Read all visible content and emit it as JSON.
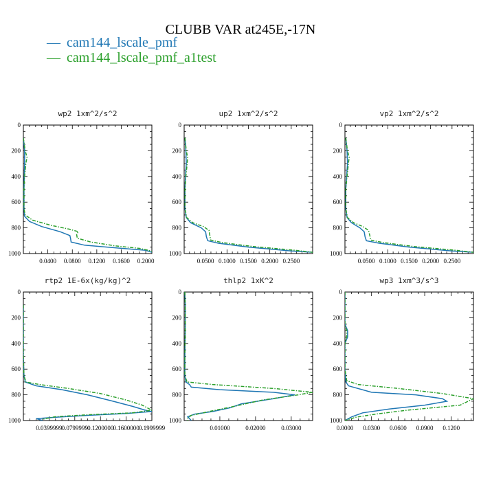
{
  "figure": {
    "title": "CLUBB VAR at245E,-17N",
    "legend": [
      {
        "marker": "—",
        "label": "cam144_lscale_pmf",
        "color": "#1f77b4"
      },
      {
        "marker": "—",
        "label": "cam144_lscale_pmf_a1test",
        "color": "#2ca02c"
      }
    ]
  },
  "chart_data": [
    {
      "type": "line",
      "title": "wp2  1xm^2/s^2",
      "xlim": [
        0.0,
        0.21
      ],
      "ylim": [
        1000,
        0
      ],
      "xticks": [
        0.04,
        0.08,
        0.12,
        0.16,
        0.2
      ],
      "xtick_labels": [
        "0.0400",
        "0.0800",
        "0.1200",
        "0.1600",
        "0.2000"
      ],
      "yticks": [
        0,
        200,
        400,
        600,
        800,
        1000
      ],
      "series": [
        {
          "name": "cam144_lscale_pmf",
          "points": [
            [
              0.0,
              100
            ],
            [
              0.002,
              200
            ],
            [
              0.002,
              300
            ],
            [
              0.001,
              500
            ],
            [
              0.001,
              650
            ],
            [
              0.002,
              710
            ],
            [
              0.01,
              750
            ],
            [
              0.03,
              790
            ],
            [
              0.06,
              830
            ],
            [
              0.076,
              860
            ],
            [
              0.077,
              880
            ],
            [
              0.078,
              910
            ],
            [
              0.1,
              935
            ],
            [
              0.15,
              955
            ],
            [
              0.2,
              975
            ],
            [
              0.21,
              990
            ]
          ]
        },
        {
          "name": "cam144_lscale_pmf_a1test",
          "points": [
            [
              0.0,
              100
            ],
            [
              0.003,
              200
            ],
            [
              0.006,
              250
            ],
            [
              0.004,
              300
            ],
            [
              0.002,
              400
            ],
            [
              0.001,
              500
            ],
            [
              0.001,
              650
            ],
            [
              0.003,
              700
            ],
            [
              0.015,
              740
            ],
            [
              0.045,
              780
            ],
            [
              0.075,
              810
            ],
            [
              0.09,
              830
            ],
            [
              0.087,
              850
            ],
            [
              0.088,
              880
            ],
            [
              0.11,
              910
            ],
            [
              0.15,
              940
            ],
            [
              0.19,
              960
            ],
            [
              0.205,
              975
            ],
            [
              0.21,
              985
            ]
          ]
        }
      ]
    },
    {
      "type": "line",
      "title": "up2  1xm^2/s^2",
      "xlim": [
        0.0,
        0.3
      ],
      "ylim": [
        1000,
        0
      ],
      "xticks": [
        0.05,
        0.1,
        0.15,
        0.2,
        0.25
      ],
      "xtick_labels": [
        "0.0500",
        "0.1000",
        "0.1500",
        "0.2000",
        "0.2500"
      ],
      "yticks": [
        0,
        200,
        400,
        600,
        800,
        1000
      ],
      "series": [
        {
          "name": "cam144_lscale_pmf",
          "points": [
            [
              0.002,
              100
            ],
            [
              0.004,
              200
            ],
            [
              0.005,
              300
            ],
            [
              0.003,
              400
            ],
            [
              0.002,
              500
            ],
            [
              0.002,
              650
            ],
            [
              0.005,
              720
            ],
            [
              0.015,
              760
            ],
            [
              0.04,
              800
            ],
            [
              0.05,
              830
            ],
            [
              0.052,
              870
            ],
            [
              0.055,
              900
            ],
            [
              0.08,
              920
            ],
            [
              0.15,
              950
            ],
            [
              0.25,
              980
            ],
            [
              0.3,
              990
            ]
          ]
        },
        {
          "name": "cam144_lscale_pmf_a1test",
          "points": [
            [
              0.002,
              100
            ],
            [
              0.005,
              200
            ],
            [
              0.008,
              250
            ],
            [
              0.007,
              300
            ],
            [
              0.004,
              400
            ],
            [
              0.002,
              500
            ],
            [
              0.002,
              650
            ],
            [
              0.006,
              720
            ],
            [
              0.02,
              760
            ],
            [
              0.045,
              790
            ],
            [
              0.058,
              820
            ],
            [
              0.06,
              860
            ],
            [
              0.062,
              895
            ],
            [
              0.09,
              915
            ],
            [
              0.16,
              945
            ],
            [
              0.26,
              975
            ],
            [
              0.3,
              990
            ]
          ]
        }
      ]
    },
    {
      "type": "line",
      "title": "vp2  1xm^2/s^2",
      "xlim": [
        0.0,
        0.3
      ],
      "ylim": [
        1000,
        0
      ],
      "xticks": [
        0.05,
        0.1,
        0.15,
        0.2,
        0.25
      ],
      "xtick_labels": [
        "0.0500",
        "0.1000",
        "0.1500",
        "0.2000",
        "0.2500"
      ],
      "yticks": [
        0,
        200,
        400,
        600,
        800,
        1000
      ],
      "series": [
        {
          "name": "cam144_lscale_pmf",
          "points": [
            [
              0.002,
              100
            ],
            [
              0.005,
              200
            ],
            [
              0.006,
              300
            ],
            [
              0.004,
              400
            ],
            [
              0.002,
              500
            ],
            [
              0.002,
              650
            ],
            [
              0.005,
              720
            ],
            [
              0.015,
              760
            ],
            [
              0.035,
              800
            ],
            [
              0.045,
              830
            ],
            [
              0.047,
              870
            ],
            [
              0.05,
              900
            ],
            [
              0.08,
              920
            ],
            [
              0.15,
              950
            ],
            [
              0.25,
              980
            ],
            [
              0.3,
              990
            ]
          ]
        },
        {
          "name": "cam144_lscale_pmf_a1test",
          "points": [
            [
              0.002,
              100
            ],
            [
              0.006,
              200
            ],
            [
              0.01,
              250
            ],
            [
              0.008,
              300
            ],
            [
              0.005,
              400
            ],
            [
              0.002,
              500
            ],
            [
              0.002,
              650
            ],
            [
              0.006,
              720
            ],
            [
              0.02,
              760
            ],
            [
              0.042,
              790
            ],
            [
              0.055,
              820
            ],
            [
              0.058,
              860
            ],
            [
              0.06,
              895
            ],
            [
              0.09,
              915
            ],
            [
              0.16,
              945
            ],
            [
              0.26,
              975
            ],
            [
              0.3,
              990
            ]
          ]
        }
      ]
    },
    {
      "type": "line",
      "title": "rtp2  1E-6x(kg/kg)^2",
      "xlim": [
        0.0,
        0.2
      ],
      "ylim": [
        1000,
        0
      ],
      "xticks": [
        0.04,
        0.08,
        0.12,
        0.16,
        0.2
      ],
      "xtick_labels": [
        "0.0399999",
        "0.0799999",
        "0.1200000",
        "0.1600000",
        "0.1999999"
      ],
      "yticks": [
        0,
        200,
        400,
        600,
        800,
        1000
      ],
      "series": [
        {
          "name": "cam144_lscale_pmf",
          "points": [
            [
              0.0,
              100
            ],
            [
              0.0,
              500
            ],
            [
              0.001,
              650
            ],
            [
              0.003,
              700
            ],
            [
              0.02,
              730
            ],
            [
              0.06,
              760
            ],
            [
              0.1,
              800
            ],
            [
              0.14,
              850
            ],
            [
              0.17,
              890
            ],
            [
              0.19,
              920
            ],
            [
              0.2,
              930
            ],
            [
              0.16,
              945
            ],
            [
              0.1,
              960
            ],
            [
              0.05,
              975
            ],
            [
              0.02,
              985
            ],
            [
              0.03,
              1000
            ]
          ]
        },
        {
          "name": "cam144_lscale_pmf_a1test",
          "points": [
            [
              0.0,
              100
            ],
            [
              0.0,
              500
            ],
            [
              0.001,
              650
            ],
            [
              0.004,
              700
            ],
            [
              0.025,
              720
            ],
            [
              0.07,
              750
            ],
            [
              0.12,
              790
            ],
            [
              0.16,
              840
            ],
            [
              0.185,
              880
            ],
            [
              0.2,
              920
            ],
            [
              0.17,
              940
            ],
            [
              0.1,
              955
            ],
            [
              0.05,
              970
            ],
            [
              0.03,
              990
            ]
          ]
        }
      ]
    },
    {
      "type": "line",
      "title": "thlp2  1xK^2",
      "xlim": [
        0.0,
        0.036
      ],
      "ylim": [
        1000,
        0
      ],
      "xticks": [
        0.01,
        0.02,
        0.03
      ],
      "xtick_labels": [
        "0.01000",
        "0.02000",
        "0.03000"
      ],
      "yticks": [
        0,
        200,
        400,
        600,
        800,
        1000
      ],
      "series": [
        {
          "name": "cam144_lscale_pmf",
          "points": [
            [
              0.0002,
              0
            ],
            [
              0.0003,
              100
            ],
            [
              0.0003,
              300
            ],
            [
              0.0002,
              500
            ],
            [
              0.0002,
              650
            ],
            [
              0.0005,
              700
            ],
            [
              0.0015,
              720
            ],
            [
              0.002,
              740
            ],
            [
              0.01,
              760
            ],
            [
              0.025,
              780
            ],
            [
              0.031,
              800
            ],
            [
              0.025,
              830
            ],
            [
              0.016,
              870
            ],
            [
              0.013,
              900
            ],
            [
              0.008,
              930
            ],
            [
              0.003,
              950
            ],
            [
              0.001,
              970
            ],
            [
              0.002,
              1000
            ]
          ]
        },
        {
          "name": "cam144_lscale_pmf_a1test",
          "points": [
            [
              0.0002,
              0
            ],
            [
              0.0003,
              100
            ],
            [
              0.0003,
              300
            ],
            [
              0.0002,
              500
            ],
            [
              0.0002,
              650
            ],
            [
              0.0008,
              700
            ],
            [
              0.008,
              720
            ],
            [
              0.025,
              750
            ],
            [
              0.036,
              780
            ],
            [
              0.032,
              800
            ],
            [
              0.022,
              840
            ],
            [
              0.014,
              890
            ],
            [
              0.007,
              930
            ],
            [
              0.002,
              960
            ],
            [
              0.001,
              980
            ],
            [
              0.001,
              1000
            ]
          ]
        }
      ]
    },
    {
      "type": "line",
      "title": "wp3  1xm^3/s^3",
      "xlim": [
        0.0,
        0.145
      ],
      "ylim": [
        1000,
        0
      ],
      "xticks": [
        0.0,
        0.03,
        0.06,
        0.09,
        0.12
      ],
      "xtick_labels": [
        "0.0000",
        "0.0300",
        "0.0600",
        "0.0900",
        "0.1200"
      ],
      "yticks": [
        0,
        200,
        400,
        600,
        800,
        1000
      ],
      "series": [
        {
          "name": "cam144_lscale_pmf",
          "points": [
            [
              0.0,
              0
            ],
            [
              0.0,
              250
            ],
            [
              0.003,
              300
            ],
            [
              0.003,
              350
            ],
            [
              0.0,
              400
            ],
            [
              0.0,
              600
            ],
            [
              0.001,
              700
            ],
            [
              0.004,
              730
            ],
            [
              0.03,
              780
            ],
            [
              0.08,
              800
            ],
            [
              0.11,
              830
            ],
            [
              0.115,
              850
            ],
            [
              0.09,
              880
            ],
            [
              0.05,
              910
            ],
            [
              0.02,
              940
            ],
            [
              0.008,
              970
            ],
            [
              0.0,
              1000
            ]
          ]
        },
        {
          "name": "cam144_lscale_pmf_a1test",
          "points": [
            [
              0.0,
              0
            ],
            [
              0.0,
              250
            ],
            [
              0.002,
              300
            ],
            [
              0.002,
              350
            ],
            [
              0.0,
              400
            ],
            [
              0.0,
              600
            ],
            [
              0.002,
              690
            ],
            [
              0.015,
              720
            ],
            [
              0.06,
              750
            ],
            [
              0.11,
              790
            ],
            [
              0.145,
              830
            ],
            [
              0.13,
              880
            ],
            [
              0.07,
              920
            ],
            [
              0.035,
              950
            ],
            [
              0.012,
              975
            ],
            [
              0.0,
              1000
            ]
          ]
        }
      ]
    }
  ]
}
